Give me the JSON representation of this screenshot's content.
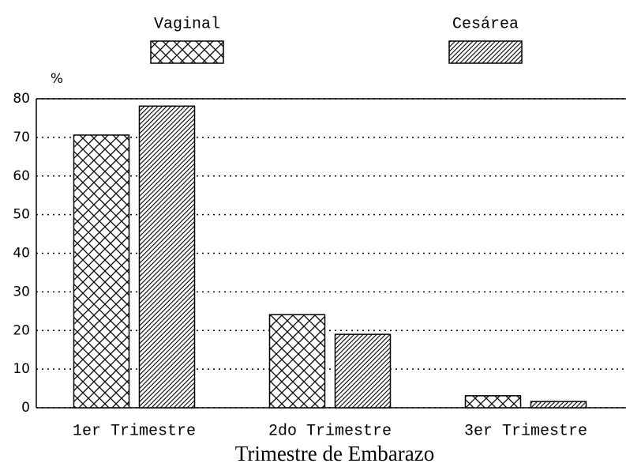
{
  "chart_data": {
    "type": "bar",
    "x_label": "Trimestre de Embarazo",
    "y_label": "%",
    "categories": [
      "1er Trimestre",
      "2do Trimestre",
      "3er Trimestre"
    ],
    "series": [
      {
        "name": "Vaginal",
        "color": "#000000",
        "pattern": "crosshatch",
        "values": [
          70.6,
          24.1,
          3.1
        ]
      },
      {
        "name": "Cesárea",
        "color": "#000000",
        "pattern": "hatch",
        "values": [
          78.1,
          19,
          1.6
        ]
      }
    ],
    "ylim": [
      0,
      80
    ],
    "yticks": [
      0,
      10,
      20,
      30,
      40,
      50,
      60,
      70,
      80
    ],
    "grid": true
  }
}
